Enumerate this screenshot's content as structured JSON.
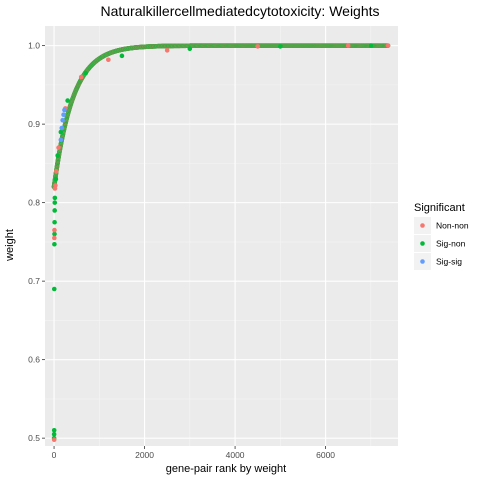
{
  "chart_data": {
    "type": "scatter",
    "title": "Naturalkillercellmediatedcytotoxicity: Weights",
    "xlabel": "gene-pair rank by weight",
    "ylabel": "weight",
    "xlim": [
      -200,
      7600
    ],
    "ylim": [
      0.49,
      1.025
    ],
    "x_ticks": [
      0,
      2000,
      4000,
      6000
    ],
    "y_ticks": [
      0.5,
      0.6,
      0.7,
      0.8,
      0.9,
      1.0
    ],
    "y_tick_labels": [
      "0.5",
      "0.6",
      "0.7",
      "0.8",
      "0.9",
      "1.0"
    ],
    "grid": true,
    "legend": {
      "title": "Significant",
      "position": "right",
      "entries": [
        {
          "name": "Non-non",
          "color": "#F8766D"
        },
        {
          "name": "Sig-non",
          "color": "#00BA38"
        },
        {
          "name": "Sig-sig",
          "color": "#619CFF"
        }
      ]
    },
    "series": [
      {
        "name": "Sig-non",
        "color": "#00BA38",
        "points": [
          [
            1,
            0.5
          ],
          [
            2,
            0.505
          ],
          [
            3,
            0.51
          ],
          [
            5,
            0.69
          ],
          [
            8,
            0.747
          ],
          [
            10,
            0.76
          ],
          [
            12,
            0.775
          ],
          [
            14,
            0.79
          ],
          [
            16,
            0.8
          ],
          [
            18,
            0.806
          ],
          [
            40,
            0.83
          ],
          [
            80,
            0.86
          ],
          [
            150,
            0.89
          ],
          [
            300,
            0.93
          ],
          [
            700,
            0.965
          ],
          [
            1500,
            0.987
          ],
          [
            3000,
            0.996
          ],
          [
            5000,
            0.999
          ],
          [
            7000,
            1.0
          ]
        ]
      },
      {
        "name": "Non-non",
        "color": "#F8766D",
        "points": [
          [
            3,
            0.498
          ],
          [
            6,
            0.755
          ],
          [
            9,
            0.765
          ],
          [
            20,
            0.818
          ],
          [
            30,
            0.822
          ],
          [
            50,
            0.84
          ],
          [
            100,
            0.87
          ],
          [
            250,
            0.92
          ],
          [
            600,
            0.96
          ],
          [
            1200,
            0.982
          ],
          [
            2500,
            0.994
          ],
          [
            4500,
            0.999
          ],
          [
            6500,
            1.0
          ],
          [
            7380,
            1.0
          ]
        ]
      },
      {
        "name": "Sig-sig",
        "color": "#619CFF",
        "points": [
          [
            150,
            0.88
          ],
          [
            170,
            0.895
          ],
          [
            190,
            0.905
          ],
          [
            210,
            0.912
          ],
          [
            230,
            0.918
          ]
        ]
      }
    ],
    "curve": {
      "type": "saturating",
      "x_range": [
        0,
        7380
      ],
      "y_start": 0.82,
      "y_end": 1.0,
      "scale": 420,
      "colors": [
        "#00BA38",
        "#F8766D"
      ]
    }
  }
}
